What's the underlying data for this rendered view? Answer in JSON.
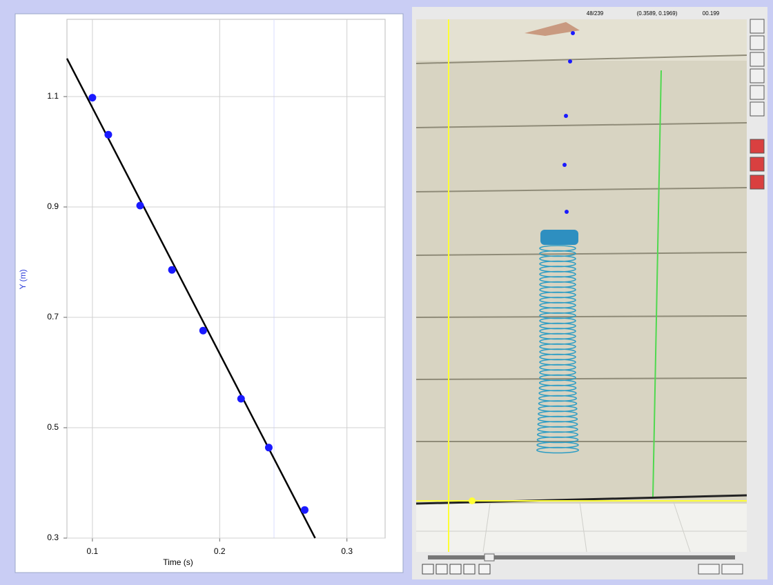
{
  "chart_data": {
    "type": "scatter",
    "x_label": "Time (s)",
    "y_label": "Y (m)",
    "x": [
      0.1,
      0.1125,
      0.1375,
      0.1625,
      0.187,
      0.2168,
      0.2386,
      0.2668
    ],
    "series": [
      {
        "color": "#1a1aff",
        "values": [
          1.098,
          1.031,
          0.9025,
          0.786,
          0.676,
          0.5525,
          0.464,
          0.351
        ]
      }
    ],
    "fit_line": {
      "x": [
        0.08,
        0.275
      ],
      "values": [
        1.169,
        0.3
      ],
      "color": "#000000"
    },
    "xlim": [
      0.08,
      0.33
    ],
    "ylim": [
      0.3,
      1.24
    ],
    "xticks": [
      0.1,
      0.2,
      0.3
    ],
    "yticks": [
      1.1,
      0.9,
      0.7,
      0.5,
      0.3
    ],
    "grid": true
  },
  "video": {
    "frame": "48/239",
    "coords": "(0.3589, 0.1969)",
    "time": "00.199"
  }
}
